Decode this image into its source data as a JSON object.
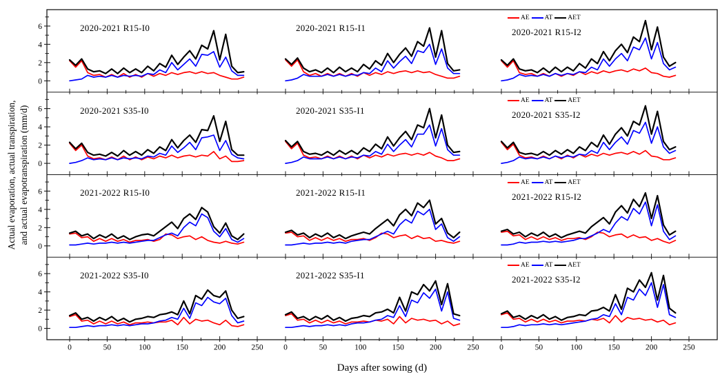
{
  "figure": {
    "x_axis_title": "Days after sowing (d)",
    "y_axis_title_line1": "Actual evaporation, actual transpiration,",
    "y_axis_title_line2": "and actual evapotranspiration (mm/d)"
  },
  "legend": {
    "items": [
      {
        "label": "AE",
        "color": "#ff0000"
      },
      {
        "label": "AT",
        "color": "#0000ff"
      },
      {
        "label": "AET",
        "color": "#000000"
      }
    ]
  },
  "chart_data": {
    "type": "line",
    "grid": {
      "rows": 4,
      "cols": 3
    },
    "xlabel": "Days after sowing (d)",
    "ylabel": "Actual evaporation, actual transpiration, and actual evapotranspiration (mm/d)",
    "x_ticks": [
      0,
      50,
      100,
      150,
      200,
      250
    ],
    "x_minor_step": 25,
    "y_ticks": [
      0,
      2,
      4,
      6
    ],
    "y_minor_ticks": [
      1,
      3,
      5,
      7
    ],
    "xlim": [
      -30,
      287
    ],
    "ylim": [
      -1.24,
      7.8
    ],
    "series_colors": {
      "AE": "#ff0000",
      "AT": "#0000ff",
      "AET": "#000000"
    },
    "x": [
      0,
      8,
      16,
      24,
      32,
      40,
      48,
      56,
      64,
      72,
      80,
      88,
      96,
      104,
      112,
      120,
      128,
      136,
      144,
      152,
      160,
      168,
      176,
      184,
      192,
      200,
      208,
      216,
      224,
      232
    ],
    "panels": [
      {
        "row": 0,
        "col": 0,
        "label": "2020-2021 R15-I0",
        "AE": [
          2.2,
          1.5,
          2.2,
          0.9,
          0.6,
          0.7,
          0.4,
          0.7,
          0.4,
          0.8,
          0.4,
          0.7,
          0.4,
          0.8,
          0.5,
          0.8,
          0.6,
          0.9,
          0.7,
          0.9,
          1.0,
          0.8,
          1.0,
          0.8,
          0.9,
          0.6,
          0.4,
          0.2,
          0.2,
          0.4
        ],
        "AT": [
          0.0,
          0.1,
          0.2,
          0.6,
          0.4,
          0.5,
          0.4,
          0.6,
          0.4,
          0.6,
          0.5,
          0.6,
          0.5,
          0.8,
          0.7,
          1.2,
          0.9,
          2.0,
          1.2,
          1.8,
          2.4,
          1.6,
          2.9,
          2.8,
          3.2,
          1.5,
          2.6,
          1.1,
          0.6,
          0.6
        ],
        "AET": [
          2.3,
          1.7,
          2.4,
          1.3,
          1.0,
          1.1,
          0.8,
          1.3,
          0.8,
          1.4,
          0.9,
          1.3,
          0.9,
          1.6,
          1.1,
          1.9,
          1.5,
          2.8,
          1.8,
          2.6,
          3.3,
          2.4,
          3.9,
          3.5,
          5.5,
          2.3,
          5.1,
          1.6,
          0.9,
          1.0
        ]
      },
      {
        "row": 0,
        "col": 1,
        "label": "2020-2021 R15-I1",
        "AE": [
          2.3,
          1.6,
          2.3,
          1.0,
          0.6,
          0.8,
          0.5,
          0.8,
          0.5,
          0.8,
          0.5,
          0.8,
          0.5,
          0.9,
          0.6,
          0.9,
          0.7,
          1.0,
          0.8,
          1.0,
          1.1,
          0.9,
          1.1,
          0.9,
          1.0,
          0.7,
          0.5,
          0.3,
          0.3,
          0.5
        ],
        "AT": [
          0.0,
          0.1,
          0.3,
          0.7,
          0.5,
          0.5,
          0.5,
          0.7,
          0.5,
          0.7,
          0.5,
          0.7,
          0.6,
          0.9,
          0.8,
          1.4,
          1.0,
          2.2,
          1.4,
          2.1,
          2.7,
          1.9,
          3.3,
          3.1,
          4.0,
          1.8,
          3.5,
          1.4,
          0.8,
          0.8
        ],
        "AET": [
          2.4,
          1.8,
          2.5,
          1.4,
          1.0,
          1.2,
          0.9,
          1.4,
          0.9,
          1.5,
          1.0,
          1.4,
          1.0,
          1.8,
          1.3,
          2.2,
          1.7,
          3.0,
          2.0,
          2.9,
          3.6,
          2.7,
          4.3,
          3.8,
          5.8,
          2.6,
          5.5,
          1.9,
          1.1,
          1.2
        ]
      },
      {
        "row": 0,
        "col": 2,
        "label": "2020-2021 R15-I2",
        "AE": [
          2.2,
          1.5,
          2.2,
          0.9,
          0.7,
          0.8,
          0.5,
          0.8,
          0.5,
          0.8,
          0.5,
          0.8,
          0.6,
          1.0,
          0.7,
          1.0,
          0.8,
          1.1,
          0.9,
          1.1,
          1.2,
          1.0,
          1.3,
          1.1,
          1.4,
          0.9,
          0.8,
          0.5,
          0.4,
          0.6
        ],
        "AT": [
          0.0,
          0.1,
          0.3,
          0.7,
          0.5,
          0.6,
          0.5,
          0.7,
          0.5,
          0.8,
          0.6,
          0.8,
          0.7,
          1.0,
          0.9,
          1.5,
          1.2,
          2.4,
          1.6,
          2.4,
          3.0,
          2.2,
          3.7,
          3.4,
          4.7,
          2.4,
          4.2,
          1.9,
          1.2,
          1.5
        ],
        "AET": [
          2.3,
          1.7,
          2.4,
          1.3,
          1.1,
          1.2,
          0.9,
          1.4,
          0.9,
          1.5,
          1.0,
          1.5,
          1.1,
          1.9,
          1.4,
          2.4,
          1.9,
          3.2,
          2.2,
          3.3,
          4.0,
          3.1,
          4.8,
          4.3,
          6.6,
          3.4,
          5.9,
          2.6,
          1.6,
          2.0
        ]
      },
      {
        "row": 1,
        "col": 0,
        "label": "2020-2021 S35-I0",
        "AE": [
          2.2,
          1.4,
          2.0,
          0.8,
          0.5,
          0.6,
          0.4,
          0.7,
          0.4,
          0.8,
          0.4,
          0.7,
          0.4,
          0.7,
          0.5,
          0.8,
          0.6,
          0.9,
          0.6,
          0.8,
          0.9,
          0.7,
          0.9,
          0.8,
          1.3,
          0.5,
          0.8,
          0.2,
          0.2,
          0.3
        ],
        "AT": [
          0.0,
          0.1,
          0.3,
          0.6,
          0.4,
          0.5,
          0.4,
          0.6,
          0.4,
          0.6,
          0.5,
          0.6,
          0.5,
          0.8,
          0.7,
          1.1,
          0.9,
          1.9,
          1.2,
          1.7,
          2.3,
          1.5,
          2.8,
          2.9,
          3.1,
          1.4,
          2.5,
          1.0,
          0.6,
          0.5
        ],
        "AET": [
          2.3,
          1.6,
          2.2,
          1.2,
          0.9,
          1.0,
          0.8,
          1.2,
          0.8,
          1.4,
          0.9,
          1.3,
          0.9,
          1.5,
          1.1,
          1.8,
          1.4,
          2.6,
          1.7,
          2.5,
          3.1,
          2.3,
          3.7,
          3.6,
          5.2,
          2.4,
          4.6,
          1.5,
          0.9,
          0.9
        ]
      },
      {
        "row": 1,
        "col": 1,
        "label": "2020-2021 S35-I1",
        "AE": [
          2.4,
          1.6,
          2.2,
          0.9,
          0.6,
          0.7,
          0.5,
          0.8,
          0.5,
          0.8,
          0.5,
          0.8,
          0.5,
          0.9,
          0.6,
          0.9,
          0.7,
          1.0,
          0.8,
          1.0,
          1.1,
          0.9,
          1.1,
          0.9,
          1.2,
          0.8,
          0.6,
          0.3,
          0.3,
          0.5
        ],
        "AT": [
          0.0,
          0.1,
          0.3,
          0.7,
          0.5,
          0.5,
          0.5,
          0.7,
          0.5,
          0.7,
          0.5,
          0.7,
          0.6,
          0.9,
          0.8,
          1.3,
          1.0,
          2.1,
          1.3,
          2.0,
          2.6,
          1.8,
          3.2,
          3.2,
          4.2,
          1.9,
          3.8,
          1.5,
          0.9,
          0.9
        ],
        "AET": [
          2.5,
          1.8,
          2.4,
          1.3,
          1.0,
          1.1,
          0.9,
          1.3,
          0.9,
          1.4,
          1.0,
          1.4,
          1.0,
          1.7,
          1.3,
          2.1,
          1.6,
          2.9,
          1.9,
          2.8,
          3.5,
          2.6,
          4.2,
          3.9,
          6.0,
          2.8,
          5.3,
          2.0,
          1.2,
          1.3
        ]
      },
      {
        "row": 1,
        "col": 2,
        "label": "2020-2021 S35-I2",
        "AE": [
          2.3,
          1.5,
          2.1,
          0.9,
          0.6,
          0.7,
          0.5,
          0.8,
          0.5,
          0.8,
          0.5,
          0.9,
          0.6,
          1.0,
          0.7,
          1.0,
          0.8,
          1.1,
          0.9,
          1.1,
          1.2,
          1.0,
          1.3,
          1.0,
          1.4,
          0.8,
          0.7,
          0.4,
          0.4,
          0.6
        ],
        "AT": [
          0.0,
          0.1,
          0.3,
          0.7,
          0.5,
          0.6,
          0.5,
          0.7,
          0.5,
          0.8,
          0.6,
          0.8,
          0.7,
          1.0,
          0.9,
          1.4,
          1.1,
          2.3,
          1.5,
          2.3,
          2.9,
          2.1,
          3.6,
          3.3,
          4.5,
          2.2,
          4.0,
          1.8,
          1.1,
          1.4
        ],
        "AET": [
          2.4,
          1.7,
          2.3,
          1.2,
          1.0,
          1.1,
          0.9,
          1.3,
          0.9,
          1.4,
          1.0,
          1.5,
          1.1,
          1.8,
          1.4,
          2.3,
          1.8,
          3.1,
          2.1,
          3.2,
          3.9,
          3.0,
          4.6,
          4.2,
          6.3,
          3.2,
          5.7,
          2.4,
          1.5,
          1.8
        ]
      },
      {
        "row": 2,
        "col": 0,
        "label": "2021-2022 R15-I0",
        "AE": [
          1.3,
          1.4,
          0.9,
          1.0,
          0.5,
          0.8,
          0.5,
          0.8,
          0.5,
          0.7,
          0.4,
          0.6,
          0.6,
          0.7,
          0.5,
          0.7,
          1.3,
          1.2,
          0.8,
          1.0,
          1.1,
          0.7,
          1.0,
          0.6,
          0.4,
          0.3,
          0.5,
          0.3,
          0.2,
          0.4
        ],
        "AT": [
          0.1,
          0.1,
          0.2,
          0.3,
          0.2,
          0.3,
          0.3,
          0.4,
          0.3,
          0.4,
          0.3,
          0.4,
          0.5,
          0.6,
          0.6,
          0.9,
          1.2,
          1.4,
          1.1,
          2.0,
          2.6,
          2.2,
          3.5,
          3.1,
          1.6,
          1.0,
          1.9,
          0.7,
          0.4,
          0.8
        ],
        "AET": [
          1.4,
          1.6,
          1.1,
          1.3,
          0.8,
          1.2,
          0.9,
          1.3,
          0.8,
          1.1,
          0.7,
          1.0,
          1.2,
          1.3,
          1.1,
          1.6,
          2.1,
          2.6,
          1.9,
          3.0,
          3.5,
          2.9,
          4.2,
          3.7,
          2.1,
          1.4,
          2.5,
          1.1,
          0.7,
          1.3
        ]
      },
      {
        "row": 2,
        "col": 1,
        "label": "2021-2022 R15-I1",
        "AE": [
          1.4,
          1.5,
          1.0,
          1.1,
          0.6,
          0.9,
          0.6,
          0.9,
          0.6,
          0.8,
          0.5,
          0.7,
          0.7,
          0.8,
          0.6,
          0.9,
          1.4,
          1.3,
          0.9,
          1.1,
          1.2,
          0.8,
          1.1,
          0.8,
          0.9,
          0.5,
          0.6,
          0.4,
          0.3,
          0.5
        ],
        "AT": [
          0.1,
          0.1,
          0.2,
          0.3,
          0.2,
          0.3,
          0.3,
          0.4,
          0.3,
          0.4,
          0.3,
          0.5,
          0.6,
          0.7,
          0.7,
          1.0,
          1.3,
          1.6,
          1.3,
          2.3,
          2.9,
          2.5,
          3.8,
          3.4,
          4.0,
          1.8,
          2.4,
          0.9,
          0.5,
          1.0
        ],
        "AET": [
          1.5,
          1.7,
          1.2,
          1.4,
          0.9,
          1.3,
          1.0,
          1.4,
          0.9,
          1.2,
          0.8,
          1.1,
          1.3,
          1.5,
          1.3,
          1.9,
          2.4,
          2.9,
          2.2,
          3.4,
          4.0,
          3.3,
          4.7,
          4.2,
          5.0,
          2.4,
          3.0,
          1.4,
          0.9,
          1.5
        ]
      },
      {
        "row": 2,
        "col": 2,
        "label": "2021-2022 R15-I2",
        "AE": [
          1.5,
          1.6,
          1.1,
          1.2,
          0.7,
          1.0,
          0.7,
          1.0,
          0.7,
          0.9,
          0.6,
          0.8,
          0.8,
          0.9,
          0.7,
          1.0,
          1.5,
          1.4,
          1.0,
          1.2,
          1.3,
          0.9,
          1.2,
          0.9,
          1.0,
          0.6,
          0.8,
          0.5,
          0.3,
          0.6
        ],
        "AT": [
          0.1,
          0.1,
          0.2,
          0.4,
          0.3,
          0.4,
          0.4,
          0.5,
          0.4,
          0.5,
          0.4,
          0.5,
          0.6,
          0.8,
          0.8,
          1.1,
          1.4,
          1.8,
          1.5,
          2.5,
          3.2,
          2.8,
          4.1,
          3.5,
          4.8,
          2.2,
          4.5,
          1.6,
          0.7,
          1.1
        ],
        "AET": [
          1.6,
          1.8,
          1.3,
          1.5,
          1.0,
          1.4,
          1.1,
          1.5,
          1.0,
          1.3,
          0.9,
          1.2,
          1.4,
          1.6,
          1.4,
          2.1,
          2.6,
          3.1,
          2.4,
          3.7,
          4.4,
          3.6,
          5.1,
          4.3,
          5.8,
          3.0,
          5.5,
          2.3,
          1.2,
          1.6
        ]
      },
      {
        "row": 3,
        "col": 0,
        "label": "2021-2022 S35-I0",
        "AE": [
          1.3,
          1.5,
          0.8,
          0.9,
          0.5,
          0.8,
          0.5,
          0.8,
          0.5,
          0.7,
          0.4,
          0.6,
          0.6,
          0.7,
          0.6,
          0.7,
          0.7,
          0.9,
          0.4,
          1.2,
          0.5,
          1.0,
          0.8,
          0.9,
          0.6,
          0.4,
          0.9,
          0.3,
          0.2,
          0.4
        ],
        "AT": [
          0.1,
          0.1,
          0.2,
          0.3,
          0.2,
          0.3,
          0.3,
          0.4,
          0.3,
          0.4,
          0.3,
          0.4,
          0.5,
          0.5,
          0.6,
          0.8,
          0.9,
          1.2,
          1.0,
          2.2,
          1.1,
          2.8,
          2.5,
          3.4,
          2.9,
          2.7,
          3.3,
          1.4,
          0.6,
          0.8
        ],
        "AET": [
          1.4,
          1.7,
          1.0,
          1.2,
          0.8,
          1.2,
          0.9,
          1.3,
          0.8,
          1.1,
          0.7,
          1.0,
          1.1,
          1.3,
          1.2,
          1.5,
          1.6,
          1.8,
          1.5,
          3.0,
          1.6,
          3.6,
          3.2,
          4.2,
          3.6,
          3.4,
          4.1,
          2.0,
          1.1,
          1.3
        ]
      },
      {
        "row": 3,
        "col": 1,
        "label": "2021-2022 S35-I1",
        "AE": [
          1.4,
          1.6,
          0.9,
          1.0,
          0.6,
          0.9,
          0.6,
          0.9,
          0.6,
          0.8,
          0.5,
          0.7,
          0.7,
          0.8,
          0.7,
          0.9,
          0.8,
          1.0,
          0.5,
          1.3,
          0.6,
          1.1,
          0.9,
          1.0,
          0.8,
          0.9,
          0.5,
          0.8,
          0.3,
          0.5
        ],
        "AT": [
          0.1,
          0.1,
          0.2,
          0.3,
          0.2,
          0.3,
          0.3,
          0.4,
          0.3,
          0.4,
          0.3,
          0.5,
          0.6,
          0.6,
          0.7,
          0.9,
          1.0,
          1.4,
          1.2,
          2.5,
          1.3,
          3.1,
          2.8,
          3.9,
          3.3,
          4.3,
          1.9,
          4.0,
          1.1,
          0.9
        ],
        "AET": [
          1.5,
          1.8,
          1.1,
          1.3,
          0.9,
          1.3,
          1.0,
          1.4,
          0.9,
          1.2,
          0.8,
          1.1,
          1.2,
          1.4,
          1.3,
          1.7,
          1.8,
          2.1,
          1.7,
          3.4,
          1.9,
          4.0,
          3.7,
          4.8,
          4.1,
          5.2,
          2.6,
          4.9,
          1.6,
          1.4
        ]
      },
      {
        "row": 3,
        "col": 2,
        "label": "2021-2022 S35-I2",
        "AE": [
          1.5,
          1.7,
          1.0,
          1.1,
          0.7,
          1.0,
          0.7,
          1.0,
          0.7,
          0.9,
          0.6,
          0.8,
          0.8,
          0.9,
          0.8,
          1.0,
          0.9,
          1.1,
          0.6,
          1.4,
          0.7,
          1.2,
          1.0,
          1.1,
          0.9,
          1.0,
          0.7,
          0.9,
          0.4,
          0.6
        ],
        "AT": [
          0.1,
          0.1,
          0.2,
          0.4,
          0.3,
          0.4,
          0.4,
          0.5,
          0.4,
          0.5,
          0.4,
          0.5,
          0.6,
          0.7,
          0.8,
          1.0,
          1.1,
          1.5,
          1.3,
          2.7,
          1.5,
          3.4,
          3.1,
          4.3,
          3.6,
          5.0,
          2.3,
          4.8,
          1.5,
          1.2
        ],
        "AET": [
          1.6,
          1.9,
          1.2,
          1.4,
          1.0,
          1.4,
          1.1,
          1.5,
          1.0,
          1.3,
          0.9,
          1.2,
          1.3,
          1.5,
          1.4,
          1.9,
          2.0,
          2.3,
          1.9,
          3.7,
          2.1,
          4.4,
          4.0,
          5.3,
          4.5,
          6.1,
          3.1,
          5.8,
          2.2,
          1.7
        ]
      }
    ]
  }
}
